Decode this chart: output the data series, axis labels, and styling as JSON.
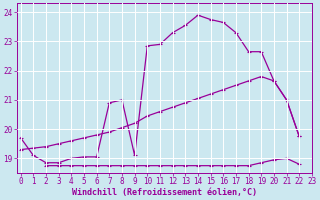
{
  "line1_x": [
    0,
    1,
    2,
    3,
    4,
    5,
    6,
    7,
    8,
    9,
    10,
    11,
    12,
    13,
    14,
    15,
    16,
    17,
    18,
    19,
    20,
    21,
    22
  ],
  "line1_y": [
    19.7,
    19.1,
    18.85,
    18.85,
    19.0,
    19.05,
    19.05,
    20.9,
    21.0,
    19.1,
    22.85,
    22.9,
    23.3,
    23.55,
    23.9,
    23.75,
    23.65,
    23.3,
    22.65,
    22.65,
    21.65,
    21.0,
    19.75
  ],
  "line2_x": [
    0,
    1,
    2,
    3,
    4,
    5,
    6,
    7,
    8,
    9,
    10,
    11,
    12,
    13,
    14,
    15,
    16,
    17,
    18,
    19,
    20,
    21,
    22
  ],
  "line2_y": [
    19.3,
    19.35,
    19.4,
    19.5,
    19.6,
    19.7,
    19.8,
    19.9,
    20.05,
    20.2,
    20.45,
    20.6,
    20.75,
    20.9,
    21.05,
    21.2,
    21.35,
    21.5,
    21.65,
    21.8,
    21.65,
    21.0,
    19.75
  ],
  "line3_x": [
    2,
    3,
    4,
    5,
    6,
    7,
    8,
    9,
    10,
    11,
    12,
    13,
    14,
    15,
    16,
    17,
    18,
    19,
    20,
    21,
    22
  ],
  "line3_y": [
    18.75,
    18.75,
    18.75,
    18.75,
    18.75,
    18.75,
    18.75,
    18.75,
    18.75,
    18.75,
    18.75,
    18.75,
    18.75,
    18.75,
    18.75,
    18.75,
    18.75,
    18.85,
    18.95,
    19.0,
    18.8
  ],
  "color": "#990099",
  "marker": "+",
  "bg_color": "#cce8f0",
  "grid_color": "#aaccdd",
  "xlabel": "Windchill (Refroidissement éolien,°C)",
  "ylim": [
    18.5,
    24.3
  ],
  "xlim": [
    -0.3,
    23
  ],
  "yticks": [
    19,
    20,
    21,
    22,
    23,
    24
  ],
  "xticks": [
    0,
    1,
    2,
    3,
    4,
    5,
    6,
    7,
    8,
    9,
    10,
    11,
    12,
    13,
    14,
    15,
    16,
    17,
    18,
    19,
    20,
    21,
    22,
    23
  ],
  "tick_fontsize": 5.5,
  "xlabel_fontsize": 6.0,
  "lw": 0.9,
  "ms": 2.5
}
